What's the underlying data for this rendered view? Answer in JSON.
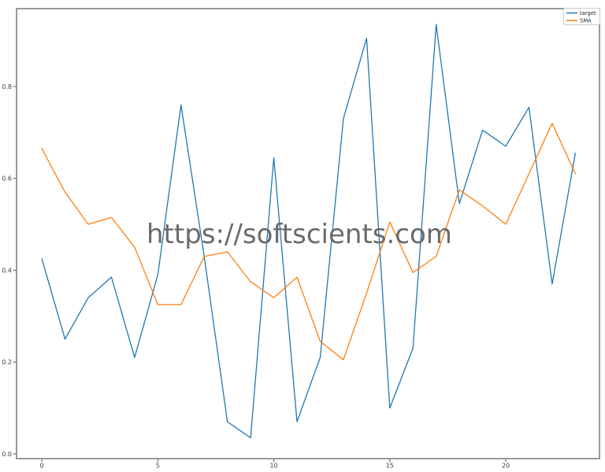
{
  "figure": {
    "watermark": "https://softscients.com",
    "background": "#ffffff",
    "spine_color": "#787878"
  },
  "legend": {
    "position": "upper right",
    "entries": [
      {
        "label": "target",
        "color": "#1f77b4"
      },
      {
        "label": "SMA",
        "color": "#ff7f0e"
      }
    ]
  },
  "axes": {
    "x_tick_labels": [
      "0",
      "5",
      "10",
      "15",
      "20"
    ],
    "y_tick_labels": [
      "0.0",
      "0.2",
      "0.4",
      "0.6",
      "0.8"
    ]
  },
  "chart_data": {
    "type": "line",
    "title": "",
    "xlabel": "",
    "ylabel": "",
    "grid": false,
    "legend_position": "upper right",
    "x": [
      0,
      1,
      2,
      3,
      4,
      5,
      6,
      7,
      8,
      9,
      10,
      11,
      12,
      13,
      14,
      15,
      16,
      17,
      18,
      19,
      20,
      21,
      22,
      23
    ],
    "series": [
      {
        "name": "target",
        "color": "#1f77b4",
        "values": [
          0.425,
          0.25,
          0.34,
          0.385,
          0.21,
          0.39,
          0.76,
          0.43,
          0.07,
          0.035,
          0.645,
          0.07,
          0.21,
          0.73,
          0.905,
          0.1,
          0.23,
          0.935,
          0.545,
          0.705,
          0.67,
          0.755,
          0.37,
          0.655
        ]
      },
      {
        "name": "SMA",
        "color": "#ff7f0e",
        "values": [
          0.665,
          0.57,
          0.5,
          0.515,
          0.45,
          0.325,
          0.325,
          0.43,
          0.44,
          0.375,
          0.34,
          0.385,
          0.245,
          0.205,
          0.35,
          0.505,
          0.395,
          0.43,
          0.575,
          0.54,
          0.5,
          0.61,
          0.72,
          0.61
        ]
      }
    ],
    "x_ticks": [
      0,
      5,
      10,
      15,
      20
    ],
    "y_ticks": [
      0.0,
      0.2,
      0.4,
      0.6,
      0.8
    ],
    "xlim": [
      -1.09,
      24.04
    ],
    "ylim": [
      -0.0103,
      0.9696
    ]
  }
}
